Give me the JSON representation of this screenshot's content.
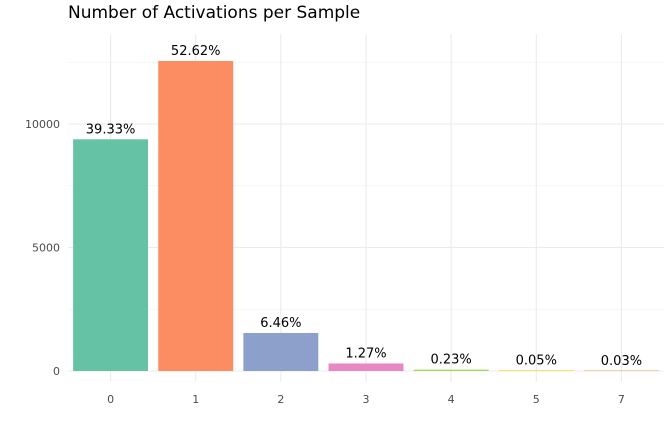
{
  "chart_data": {
    "type": "bar",
    "title": "Number of Activations per Sample",
    "xlabel": "",
    "ylabel": "",
    "categories": [
      "0",
      "1",
      "2",
      "3",
      "4",
      "5",
      "7"
    ],
    "values": [
      9380,
      12550,
      1540,
      305,
      55,
      12,
      7
    ],
    "data_labels": [
      "39.33%",
      "52.62%",
      "6.46%",
      "1.27%",
      "0.23%",
      "0.05%",
      "0.03%"
    ],
    "colors": [
      "#66c2a5",
      "#fc8d62",
      "#8da0cb",
      "#e78ac3",
      "#a6d854",
      "#ffd92f",
      "#e5c494"
    ],
    "ylim": [
      0,
      13000
    ],
    "yticks": [
      0,
      5000,
      10000
    ],
    "ytick_labels": [
      "0",
      "5000",
      "10000"
    ],
    "grid": true,
    "legend": "none"
  }
}
